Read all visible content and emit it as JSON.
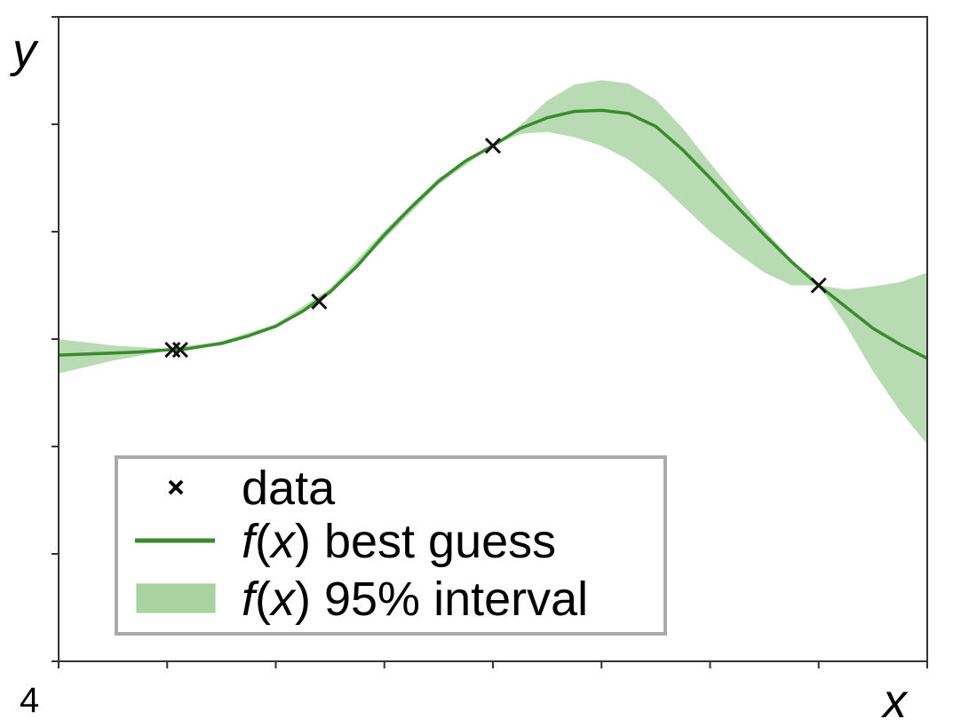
{
  "chart_data": {
    "type": "line",
    "title": "",
    "xlabel": "x",
    "ylabel": "y",
    "xlim": [
      4,
      12
    ],
    "ylim": [
      -3,
      3
    ],
    "x_tick_labels": [
      {
        "x": 4,
        "label": "4"
      }
    ],
    "grid": false,
    "legend_position": "bottom-left",
    "legend": [
      {
        "marker": "x",
        "pre": "",
        "fx": "",
        "text": "data"
      },
      {
        "marker": "line",
        "pre": "f",
        "fx": "x",
        "text": " best guess"
      },
      {
        "marker": "band",
        "pre": "f",
        "fx": "x",
        "text": " 95% interval"
      }
    ],
    "colors": {
      "line": "#3a8a2e",
      "band": "#a8d2a0",
      "markers": "#111111"
    },
    "series": [
      {
        "kind": "data",
        "points": [
          [
            5.05,
            -0.1
          ],
          [
            5.12,
            -0.1
          ],
          [
            6.4,
            0.35
          ],
          [
            8.0,
            1.8
          ],
          [
            11.0,
            0.5
          ]
        ]
      },
      {
        "kind": "mean",
        "points": [
          [
            4.0,
            -0.15
          ],
          [
            4.25,
            -0.14
          ],
          [
            4.5,
            -0.13
          ],
          [
            4.75,
            -0.12
          ],
          [
            5.0,
            -0.1
          ],
          [
            5.12,
            -0.1
          ],
          [
            5.25,
            -0.08
          ],
          [
            5.5,
            -0.04
          ],
          [
            5.75,
            0.03
          ],
          [
            6.0,
            0.12
          ],
          [
            6.25,
            0.26
          ],
          [
            6.5,
            0.44
          ],
          [
            6.75,
            0.68
          ],
          [
            7.0,
            0.97
          ],
          [
            7.25,
            1.23
          ],
          [
            7.5,
            1.47
          ],
          [
            7.75,
            1.66
          ],
          [
            8.0,
            1.8
          ],
          [
            8.25,
            1.96
          ],
          [
            8.5,
            2.06
          ],
          [
            8.75,
            2.12
          ],
          [
            9.0,
            2.13
          ],
          [
            9.25,
            2.1
          ],
          [
            9.5,
            1.98
          ],
          [
            9.75,
            1.76
          ],
          [
            10.0,
            1.5
          ],
          [
            10.25,
            1.23
          ],
          [
            10.5,
            0.97
          ],
          [
            10.75,
            0.72
          ],
          [
            11.0,
            0.5
          ],
          [
            11.25,
            0.3
          ],
          [
            11.5,
            0.1
          ],
          [
            11.75,
            -0.05
          ],
          [
            12.0,
            -0.18
          ]
        ]
      },
      {
        "kind": "band_upper",
        "points": [
          [
            4.0,
            0.0
          ],
          [
            4.5,
            -0.06
          ],
          [
            5.0,
            -0.09
          ],
          [
            5.5,
            -0.02
          ],
          [
            6.0,
            0.14
          ],
          [
            6.5,
            0.47
          ],
          [
            7.0,
            1.01
          ],
          [
            7.5,
            1.5
          ],
          [
            8.0,
            1.8
          ],
          [
            8.25,
            1.99
          ],
          [
            8.5,
            2.22
          ],
          [
            8.75,
            2.37
          ],
          [
            9.0,
            2.41
          ],
          [
            9.25,
            2.38
          ],
          [
            9.5,
            2.23
          ],
          [
            9.75,
            1.96
          ],
          [
            10.0,
            1.64
          ],
          [
            10.25,
            1.33
          ],
          [
            10.5,
            1.02
          ],
          [
            10.75,
            0.74
          ],
          [
            11.0,
            0.5
          ],
          [
            11.25,
            0.46
          ],
          [
            11.5,
            0.49
          ],
          [
            11.75,
            0.53
          ],
          [
            12.0,
            0.62
          ]
        ]
      },
      {
        "kind": "band_lower",
        "points": [
          [
            4.0,
            -0.32
          ],
          [
            4.5,
            -0.2
          ],
          [
            5.0,
            -0.11
          ],
          [
            5.5,
            -0.06
          ],
          [
            6.0,
            0.1
          ],
          [
            6.5,
            0.41
          ],
          [
            7.0,
            0.93
          ],
          [
            7.5,
            1.44
          ],
          [
            8.0,
            1.8
          ],
          [
            8.25,
            1.91
          ],
          [
            8.5,
            1.93
          ],
          [
            8.75,
            1.88
          ],
          [
            9.0,
            1.8
          ],
          [
            9.25,
            1.67
          ],
          [
            9.5,
            1.48
          ],
          [
            9.75,
            1.24
          ],
          [
            10.0,
            1.0
          ],
          [
            10.25,
            0.8
          ],
          [
            10.5,
            0.62
          ],
          [
            10.75,
            0.5
          ],
          [
            11.0,
            0.5
          ],
          [
            11.25,
            0.13
          ],
          [
            11.5,
            -0.3
          ],
          [
            11.75,
            -0.67
          ],
          [
            12.0,
            -0.98
          ]
        ]
      }
    ]
  }
}
